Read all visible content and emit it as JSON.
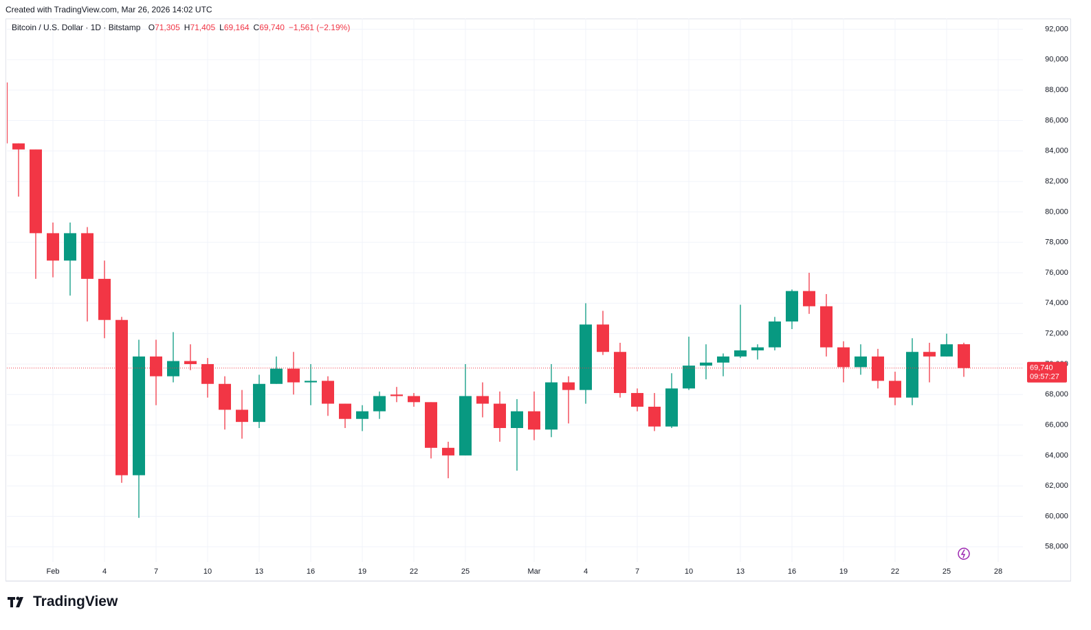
{
  "header": {
    "credit": "Created with TradingView.com, Mar 26, 2026 14:02 UTC",
    "symbol": "Bitcoin / U.S. Dollar · 1D · Bitstamp",
    "ohlc": [
      {
        "label": "O",
        "value": "71,305"
      },
      {
        "label": "H",
        "value": "71,405"
      },
      {
        "label": "L",
        "value": "69,164"
      },
      {
        "label": "C",
        "value": "69,740"
      }
    ],
    "change": "−1,561 (−2.19%)"
  },
  "chart_data": {
    "type": "candlestick",
    "categories": [
      null,
      null,
      null,
      "Feb",
      null,
      null,
      "4",
      null,
      null,
      "7",
      null,
      null,
      "10",
      null,
      null,
      "13",
      null,
      null,
      "16",
      null,
      null,
      "19",
      null,
      null,
      "22",
      null,
      null,
      "25",
      null,
      null,
      null,
      "Mar",
      null,
      null,
      "4",
      null,
      null,
      "7",
      null,
      null,
      "10",
      null,
      null,
      "13",
      null,
      null,
      "16",
      null,
      null,
      "19",
      null,
      null,
      "22",
      null,
      null,
      "25",
      null,
      null,
      "28"
    ],
    "open": [
      88500,
      84500,
      84100,
      78600,
      76800,
      78600,
      75600,
      72900,
      62700,
      70500,
      69200,
      70200,
      70000,
      68700,
      67000,
      66200,
      68700,
      69700,
      68800,
      68900,
      67400,
      66400,
      66900,
      68000,
      67900,
      67500,
      64500,
      64000,
      67900,
      67400,
      65800,
      66900,
      65700,
      68800,
      68300,
      72600,
      70800,
      68100,
      67200,
      65900,
      68400,
      69900,
      70100,
      70500,
      70900,
      71100,
      72800,
      74800,
      73800,
      71100,
      69800,
      70500,
      68900,
      67800,
      70800,
      70500,
      71305,
      null,
      null
    ],
    "high": [
      89100,
      84500,
      84100,
      79300,
      79300,
      79000,
      76800,
      73100,
      71600,
      71600,
      72100,
      71300,
      70400,
      69200,
      68300,
      69300,
      70500,
      70800,
      70000,
      69200,
      67400,
      67300,
      68200,
      68500,
      68100,
      67500,
      64900,
      70000,
      68800,
      68200,
      67700,
      68200,
      70000,
      69200,
      74000,
      73500,
      71400,
      68400,
      68100,
      69400,
      71800,
      71300,
      70700,
      73900,
      71300,
      73100,
      74900,
      76000,
      74600,
      71500,
      71300,
      71000,
      69500,
      71700,
      71400,
      72000,
      71405,
      null,
      null
    ],
    "low": [
      84400,
      81000,
      75600,
      75700,
      74500,
      72800,
      71700,
      62200,
      59900,
      67300,
      68800,
      69600,
      67800,
      65700,
      65100,
      65800,
      68700,
      68000,
      67300,
      66600,
      65800,
      65600,
      66400,
      67500,
      67200,
      63800,
      62500,
      64000,
      66500,
      64900,
      63000,
      65000,
      65200,
      66100,
      67400,
      70600,
      67800,
      66900,
      65600,
      65800,
      68300,
      69000,
      69200,
      70400,
      70300,
      70900,
      72300,
      73300,
      70500,
      68800,
      69300,
      68400,
      67300,
      67300,
      68800,
      70500,
      69164,
      null,
      null
    ],
    "close": [
      84500,
      84100,
      78600,
      76800,
      78600,
      75600,
      72900,
      62700,
      70500,
      69200,
      70200,
      70000,
      68700,
      67000,
      66200,
      68700,
      69700,
      68800,
      68900,
      67400,
      66400,
      66900,
      67900,
      67900,
      67500,
      64500,
      64000,
      67900,
      67400,
      65800,
      66900,
      65700,
      68800,
      68300,
      72600,
      70800,
      68100,
      67200,
      65900,
      68400,
      69900,
      70100,
      70500,
      70900,
      71100,
      72800,
      74800,
      73800,
      71100,
      69800,
      70500,
      68900,
      67800,
      70800,
      70500,
      71300,
      69740,
      null,
      null
    ],
    "up_color": "#089981",
    "down_color": "#f23645",
    "ylim": [
      57000,
      92700
    ],
    "yticks": [
      {
        "value": 58000,
        "label": "58,000"
      },
      {
        "value": 60000,
        "label": "60,000"
      },
      {
        "value": 62000,
        "label": "62,000"
      },
      {
        "value": 64000,
        "label": "64,000"
      },
      {
        "value": 66000,
        "label": "66,000"
      },
      {
        "value": 68000,
        "label": "68,000"
      },
      {
        "value": 70000,
        "label": "70,000"
      },
      {
        "value": 72000,
        "label": "72,000"
      },
      {
        "value": 74000,
        "label": "74,000"
      },
      {
        "value": 76000,
        "label": "76,000"
      },
      {
        "value": 78000,
        "label": "78,000"
      },
      {
        "value": 80000,
        "label": "80,000"
      },
      {
        "value": 82000,
        "label": "82,000"
      },
      {
        "value": 84000,
        "label": "84,000"
      },
      {
        "value": 86000,
        "label": "86,000"
      },
      {
        "value": 88000,
        "label": "88,000"
      },
      {
        "value": 90000,
        "label": "90,000"
      },
      {
        "value": 92000,
        "label": "92,000"
      }
    ],
    "grid": true,
    "last_price": {
      "value": 69740,
      "label": "69,740"
    },
    "countdown": "09:57:27"
  },
  "footer": {
    "logo": "TradingView"
  }
}
